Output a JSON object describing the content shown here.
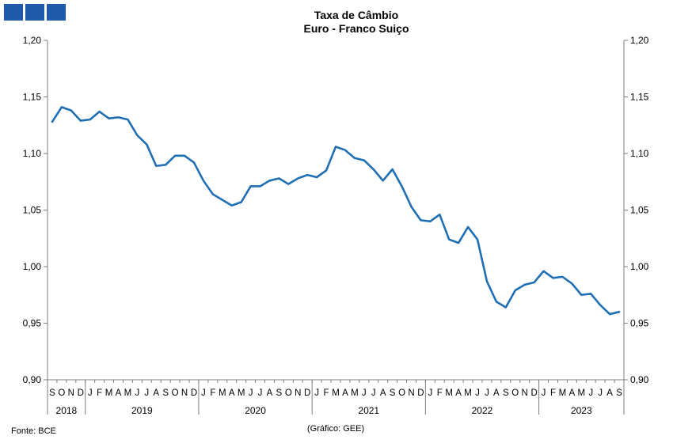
{
  "title": "Taxa de Câmbio",
  "subtitle": "Euro - Franco Suiço",
  "source": "Fonte: BCE",
  "chart_credit": "(Gráfico: GEE)",
  "colors": {
    "line": "#1f6fb4",
    "logo": "#1f5ba8",
    "axis": "#7f7f7f"
  },
  "chart_data": {
    "type": "line",
    "ylim": [
      0.9,
      1.2
    ],
    "yticks": [
      "0,90",
      "0,95",
      "1,00",
      "1,05",
      "1,10",
      "1,15",
      "1,20"
    ],
    "grid": false,
    "legend": "none",
    "month_labels": [
      "S",
      "O",
      "N",
      "D",
      "J",
      "F",
      "M",
      "A",
      "M",
      "J",
      "J",
      "A",
      "S",
      "O",
      "N",
      "D",
      "J",
      "F",
      "M",
      "A",
      "M",
      "J",
      "J",
      "A",
      "S",
      "O",
      "N",
      "D",
      "J",
      "F",
      "M",
      "A",
      "M",
      "J",
      "J",
      "A",
      "S",
      "O",
      "N",
      "D",
      "J",
      "F",
      "M",
      "A",
      "M",
      "J",
      "J",
      "A",
      "S",
      "O",
      "N",
      "D",
      "J",
      "F",
      "M",
      "A",
      "M",
      "J",
      "J",
      "A",
      "S"
    ],
    "years": [
      {
        "label": "2018",
        "start": 0,
        "count": 4
      },
      {
        "label": "2019",
        "start": 4,
        "count": 12
      },
      {
        "label": "2020",
        "start": 16,
        "count": 12
      },
      {
        "label": "2021",
        "start": 28,
        "count": 12
      },
      {
        "label": "2022",
        "start": 40,
        "count": 12
      },
      {
        "label": "2023",
        "start": 52,
        "count": 9
      }
    ],
    "values": [
      1.128,
      1.141,
      1.138,
      1.129,
      1.13,
      1.137,
      1.131,
      1.132,
      1.13,
      1.116,
      1.108,
      1.089,
      1.09,
      1.098,
      1.098,
      1.092,
      1.076,
      1.064,
      1.059,
      1.054,
      1.057,
      1.071,
      1.071,
      1.076,
      1.078,
      1.073,
      1.078,
      1.081,
      1.079,
      1.085,
      1.106,
      1.103,
      1.096,
      1.094,
      1.086,
      1.076,
      1.086,
      1.071,
      1.053,
      1.041,
      1.04,
      1.046,
      1.024,
      1.021,
      1.035,
      1.024,
      0.987,
      0.969,
      0.964,
      0.979,
      0.984,
      0.986,
      0.996,
      0.99,
      0.991,
      0.985,
      0.975,
      0.976,
      0.966,
      0.958,
      0.96
    ]
  }
}
